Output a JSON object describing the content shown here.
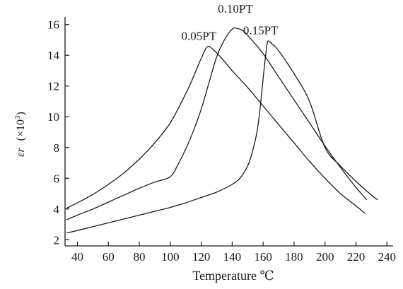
{
  "chart_data": {
    "type": "line",
    "title": "",
    "xlabel": "Temperature ℃",
    "ylabel_symbol": "εr",
    "ylabel_unit": "(×10",
    "ylabel_exp": "3",
    "ylabel_close": ")",
    "xlim": [
      32,
      244
    ],
    "ylim": [
      1.6,
      16.4
    ],
    "xticks": [
      40,
      60,
      80,
      100,
      120,
      140,
      160,
      180,
      200,
      220,
      240
    ],
    "yticks": [
      2,
      4,
      6,
      8,
      10,
      12,
      14,
      16
    ],
    "grid": false,
    "legend": "inline labels near curve peaks",
    "series": [
      {
        "name": "0.05PT",
        "x": [
          33,
          40,
          50,
          60,
          70,
          80,
          90,
          100,
          110,
          115,
          120,
          124,
          128,
          135,
          140,
          150,
          160,
          170,
          180,
          190,
          200,
          210,
          220,
          226
        ],
        "y": [
          4.05,
          4.4,
          4.95,
          5.6,
          6.35,
          7.25,
          8.3,
          9.6,
          11.5,
          12.6,
          13.8,
          14.55,
          14.35,
          13.6,
          13.0,
          11.9,
          10.7,
          9.5,
          8.3,
          7.1,
          6.0,
          5.0,
          4.2,
          3.7
        ]
      },
      {
        "name": "0.10PT",
        "x": [
          33,
          40,
          50,
          60,
          70,
          80,
          90,
          100,
          105,
          110,
          115,
          120,
          125,
          130,
          135,
          140,
          143,
          147,
          150,
          160,
          170,
          180,
          190,
          200,
          210,
          220,
          227
        ],
        "y": [
          3.3,
          3.6,
          4.0,
          4.45,
          4.9,
          5.35,
          5.75,
          6.1,
          6.9,
          7.9,
          9.1,
          10.5,
          12.2,
          13.9,
          15.0,
          15.7,
          15.75,
          15.6,
          15.3,
          14.1,
          12.6,
          11.1,
          9.6,
          8.1,
          6.7,
          5.4,
          4.6
        ]
      },
      {
        "name": "0.15PT",
        "x": [
          33,
          40,
          50,
          60,
          70,
          80,
          90,
          100,
          110,
          120,
          130,
          140,
          145,
          150,
          153,
          156,
          158,
          160,
          162,
          163,
          165,
          170,
          180,
          190,
          200,
          210,
          220,
          230,
          234
        ],
        "y": [
          2.45,
          2.6,
          2.85,
          3.1,
          3.35,
          3.6,
          3.85,
          4.1,
          4.4,
          4.75,
          5.1,
          5.6,
          6.0,
          6.8,
          7.7,
          9.0,
          10.5,
          12.5,
          14.3,
          14.9,
          14.8,
          14.3,
          12.8,
          11.0,
          8.0,
          6.8,
          5.8,
          4.9,
          4.6
        ]
      }
    ]
  }
}
